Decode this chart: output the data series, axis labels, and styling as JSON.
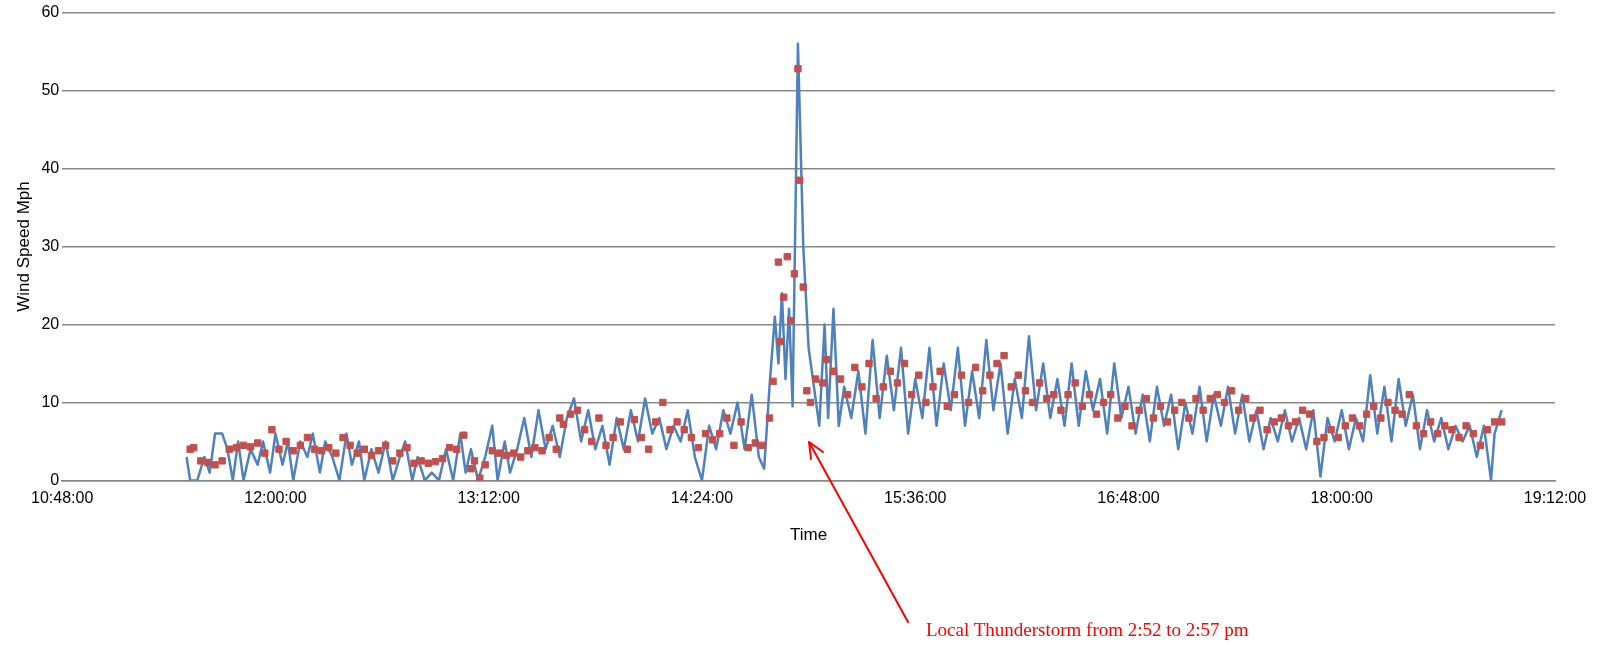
{
  "chart_data": {
    "type": "line",
    "xlabel": "Time",
    "ylabel": "Wind Speed Mph",
    "xlim": [
      10.8,
      19.2
    ],
    "ylim": [
      0,
      60
    ],
    "xticks": [
      {
        "value": 10.8,
        "label": "10:48:00"
      },
      {
        "value": 12,
        "label": "12:00:00"
      },
      {
        "value": 13.2,
        "label": "13:12:00"
      },
      {
        "value": 14.4,
        "label": "14:24:00"
      },
      {
        "value": 15.6,
        "label": "15:36:00"
      },
      {
        "value": 16.8,
        "label": "16:48:00"
      },
      {
        "value": 18,
        "label": "18:00:00"
      },
      {
        "value": 19.2,
        "label": "19:12:00"
      }
    ],
    "yticks": [
      0,
      10,
      20,
      30,
      40,
      50,
      60
    ],
    "grid": "y",
    "legend": false,
    "line_style": "solid",
    "annotations": [
      "Local Thunderstorm from 2:52 to 2:57 pm"
    ],
    "series": [
      {
        "marker": "none",
        "color": "#4f81bd",
        "x": [
          11.5,
          11.52,
          11.56,
          11.6,
          11.63,
          11.66,
          11.7,
          11.73,
          11.76,
          11.79,
          11.82,
          11.86,
          11.9,
          11.93,
          11.97,
          12,
          12.04,
          12.07,
          12.1,
          12.14,
          12.18,
          12.21,
          12.25,
          12.28,
          12.32,
          12.36,
          12.4,
          12.43,
          12.47,
          12.5,
          12.54,
          12.58,
          12.62,
          12.66,
          12.7,
          12.73,
          12.77,
          12.8,
          12.84,
          12.88,
          12.92,
          12.96,
          13,
          13.04,
          13.07,
          13.1,
          13.14,
          13.18,
          13.22,
          13.25,
          13.29,
          13.32,
          13.36,
          13.4,
          13.44,
          13.48,
          13.52,
          13.56,
          13.6,
          13.64,
          13.68,
          13.72,
          13.76,
          13.8,
          13.84,
          13.88,
          13.92,
          13.96,
          14,
          14.04,
          14.08,
          14.12,
          14.16,
          14.2,
          14.24,
          14.28,
          14.32,
          14.36,
          14.4,
          14.44,
          14.48,
          14.52,
          14.56,
          14.6,
          14.64,
          14.68,
          14.72,
          14.75,
          14.78,
          14.81,
          14.83,
          14.85,
          14.87,
          14.89,
          14.91,
          14.94,
          14.97,
          15,
          15.03,
          15.06,
          15.09,
          15.11,
          15.14,
          15.17,
          15.2,
          15.24,
          15.28,
          15.32,
          15.36,
          15.4,
          15.44,
          15.48,
          15.52,
          15.56,
          15.6,
          15.64,
          15.68,
          15.72,
          15.76,
          15.8,
          15.84,
          15.88,
          15.92,
          15.96,
          16,
          16.04,
          16.08,
          16.12,
          16.16,
          16.2,
          16.24,
          16.28,
          16.32,
          16.36,
          16.4,
          16.44,
          16.48,
          16.52,
          16.56,
          16.6,
          16.64,
          16.68,
          16.72,
          16.76,
          16.8,
          16.84,
          16.88,
          16.92,
          16.96,
          17,
          17.04,
          17.08,
          17.12,
          17.16,
          17.2,
          17.24,
          17.28,
          17.32,
          17.36,
          17.4,
          17.44,
          17.48,
          17.52,
          17.56,
          17.6,
          17.64,
          17.68,
          17.72,
          17.76,
          17.8,
          17.84,
          17.88,
          17.92,
          17.96,
          18,
          18.04,
          18.08,
          18.12,
          18.16,
          18.2,
          18.24,
          18.28,
          18.32,
          18.36,
          18.4,
          18.44,
          18.48,
          18.52,
          18.56,
          18.6,
          18.64,
          18.68,
          18.72,
          18.76,
          18.8,
          18.84,
          18.86,
          18.9
        ],
        "values": [
          3,
          0,
          0,
          3,
          1,
          6,
          6,
          4,
          0,
          5,
          0,
          4,
          2,
          5,
          1,
          6,
          2,
          5,
          0,
          5,
          3,
          6,
          1,
          5,
          3,
          0,
          6,
          2,
          5,
          0,
          4,
          1,
          5,
          0,
          3,
          5,
          0,
          3,
          0,
          1,
          0,
          4,
          0,
          6,
          1,
          4,
          0,
          3,
          7,
          0,
          5,
          1,
          4,
          8,
          3,
          9,
          4,
          7,
          3,
          8,
          10.5,
          5,
          9,
          4,
          7,
          2,
          8,
          4,
          9,
          5,
          10.5,
          6,
          8,
          4,
          7,
          5,
          9,
          3,
          0,
          7,
          4,
          9,
          6,
          10,
          4,
          11,
          3,
          1.5,
          12,
          21,
          15,
          24,
          13,
          22,
          9.5,
          56,
          30,
          17,
          12,
          7,
          20,
          8,
          22,
          7,
          12,
          8,
          14,
          6,
          18,
          8,
          16,
          9,
          17,
          6,
          13,
          8,
          17,
          7,
          15,
          9,
          17,
          7,
          14,
          8,
          18,
          9,
          15,
          6,
          13,
          8,
          18.5,
          9,
          15,
          8,
          13,
          7,
          15,
          7,
          14,
          9,
          13,
          6,
          15,
          8,
          12,
          6,
          11,
          5,
          12,
          7,
          11,
          4,
          10,
          6,
          12,
          5,
          11,
          7,
          12,
          6,
          11,
          5,
          9,
          4,
          8,
          5,
          9,
          5,
          8,
          4,
          9,
          0.5,
          8,
          5,
          9,
          4,
          8,
          5,
          13.5,
          6,
          12,
          5,
          13,
          7,
          11,
          4,
          9,
          5,
          8,
          4,
          7,
          5,
          7,
          3,
          7,
          0,
          6,
          9
        ]
      },
      {
        "type": "scatter",
        "marker": "square",
        "color": "#c0504d",
        "x": [
          11.52,
          11.54,
          11.58,
          11.62,
          11.66,
          11.7,
          11.74,
          11.78,
          11.82,
          11.86,
          11.9,
          11.94,
          11.98,
          12.02,
          12.06,
          12.1,
          12.14,
          12.18,
          12.22,
          12.26,
          12.3,
          12.34,
          12.38,
          12.42,
          12.46,
          12.5,
          12.54,
          12.58,
          12.62,
          12.66,
          12.7,
          12.74,
          12.78,
          12.82,
          12.86,
          12.9,
          12.94,
          12.98,
          13.02,
          13.06,
          13.1,
          13.12,
          13.15,
          13.18,
          13.22,
          13.26,
          13.3,
          13.34,
          13.38,
          13.42,
          13.46,
          13.5,
          13.54,
          13.58,
          13.6,
          13.62,
          13.66,
          13.7,
          13.74,
          13.78,
          13.82,
          13.86,
          13.9,
          13.94,
          13.98,
          14.02,
          14.06,
          14.1,
          14.14,
          14.18,
          14.22,
          14.26,
          14.3,
          14.34,
          14.38,
          14.42,
          14.46,
          14.5,
          14.54,
          14.58,
          14.62,
          14.66,
          14.7,
          14.74,
          14.78,
          14.8,
          14.83,
          14.84,
          14.86,
          14.88,
          14.9,
          14.92,
          14.94,
          14.95,
          14.97,
          14.99,
          15.01,
          15.04,
          15.08,
          15.1,
          15.14,
          15.18,
          15.22,
          15.26,
          15.3,
          15.34,
          15.38,
          15.42,
          15.46,
          15.5,
          15.54,
          15.58,
          15.62,
          15.66,
          15.7,
          15.74,
          15.78,
          15.82,
          15.86,
          15.9,
          15.94,
          15.98,
          16.02,
          16.06,
          16.1,
          16.14,
          16.18,
          16.22,
          16.26,
          16.3,
          16.34,
          16.38,
          16.42,
          16.46,
          16.5,
          16.54,
          16.58,
          16.62,
          16.66,
          16.7,
          16.74,
          16.78,
          16.82,
          16.86,
          16.9,
          16.94,
          16.98,
          17.02,
          17.06,
          17.1,
          17.14,
          17.18,
          17.22,
          17.26,
          17.3,
          17.34,
          17.38,
          17.42,
          17.46,
          17.5,
          17.54,
          17.58,
          17.62,
          17.66,
          17.7,
          17.74,
          17.78,
          17.82,
          17.86,
          17.9,
          17.94,
          17.98,
          18.02,
          18.06,
          18.1,
          18.14,
          18.18,
          18.22,
          18.26,
          18.3,
          18.34,
          18.38,
          18.42,
          18.46,
          18.5,
          18.54,
          18.58,
          18.62,
          18.66,
          18.7,
          18.74,
          18.78,
          18.82,
          18.86,
          18.9
        ],
        "values": [
          4,
          4.2,
          2.5,
          2.3,
          2,
          2.5,
          4,
          4.2,
          4.5,
          4.3,
          4.8,
          3.5,
          6.5,
          4,
          5,
          3.8,
          4.5,
          5.5,
          4,
          3.8,
          4.2,
          3.5,
          5.5,
          4.5,
          3.5,
          4,
          3.2,
          3.8,
          4.5,
          2.5,
          3.5,
          4.2,
          2.2,
          2.5,
          2.2,
          2.4,
          2.8,
          4.2,
          4,
          5.8,
          1.5,
          2.5,
          0.3,
          2,
          3.8,
          3.5,
          3.2,
          3.5,
          3,
          3.8,
          4.2,
          3.8,
          5.5,
          4,
          8,
          7.2,
          8.5,
          9,
          6.5,
          5,
          8,
          4.5,
          5.5,
          7.5,
          4,
          7.8,
          5.5,
          4,
          7.5,
          10,
          6.5,
          7.5,
          6.5,
          5.5,
          4.2,
          6,
          5.2,
          6,
          8,
          4.5,
          7.5,
          4.2,
          4.8,
          4.5,
          8,
          12.7,
          28,
          17.8,
          23.5,
          28.7,
          20.5,
          26.5,
          52.8,
          38.5,
          24.8,
          11.5,
          10,
          13,
          12.5,
          15.5,
          14,
          13,
          11,
          14.5,
          12,
          15,
          10.5,
          12,
          14,
          12.5,
          15,
          11,
          13.5,
          10,
          12,
          14,
          9.5,
          11,
          13.5,
          10,
          14.5,
          11.5,
          13.5,
          15,
          16,
          12,
          13.5,
          11.5,
          10,
          12.5,
          10.5,
          11,
          9,
          11,
          12.5,
          9.5,
          11,
          8.5,
          10,
          11,
          8,
          9.5,
          7,
          9,
          10.5,
          8,
          9.5,
          7.5,
          9,
          10,
          8,
          10.5,
          9,
          10.5,
          11,
          10,
          11.5,
          9,
          10.5,
          8,
          9,
          6.5,
          7.5,
          8,
          7,
          7.5,
          9,
          8.5,
          5,
          5.5,
          6.5,
          5.5,
          7,
          8,
          7,
          8.5,
          9.5,
          8,
          10,
          9,
          8.5,
          11,
          7,
          6,
          7.5,
          6,
          7,
          6.5,
          5.5,
          7,
          6,
          4.5,
          6.5,
          7.5,
          7.5
        ]
      }
    ]
  }
}
